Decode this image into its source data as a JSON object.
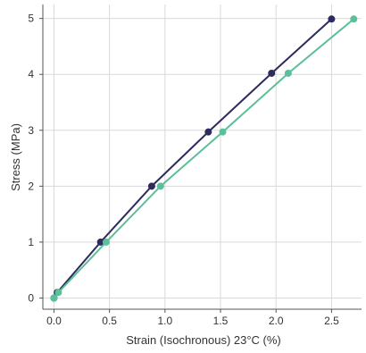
{
  "chart_data": {
    "type": "line",
    "xlabel": "Strain (Isochronous) 23°C (%)",
    "ylabel": "Stress (MPa)",
    "xlim": [
      -0.1,
      2.77
    ],
    "ylim": [
      -0.2,
      5.25
    ],
    "x_ticks": [
      0.0,
      0.5,
      1.0,
      1.5,
      2.0,
      2.5
    ],
    "x_tick_labels": [
      "0.0",
      "0.5",
      "1.0",
      "1.5",
      "2.0",
      "2.5"
    ],
    "y_ticks": [
      0,
      1,
      2,
      3,
      4,
      5
    ],
    "y_tick_labels": [
      "0",
      "1",
      "2",
      "3",
      "4",
      "5"
    ],
    "grid": true,
    "legend": "none",
    "series": [
      {
        "color": "#2e2b5f",
        "x": [
          0.0,
          0.03,
          0.42,
          0.88,
          1.39,
          1.96,
          2.5
        ],
        "y": [
          0.0,
          0.1,
          1.0,
          2.0,
          2.97,
          4.02,
          4.99
        ]
      },
      {
        "color": "#5bbf99",
        "x": [
          0.0,
          0.04,
          0.47,
          0.96,
          1.52,
          2.11,
          2.7
        ],
        "y": [
          0.0,
          0.1,
          1.0,
          2.0,
          2.97,
          4.02,
          4.99
        ]
      }
    ]
  }
}
